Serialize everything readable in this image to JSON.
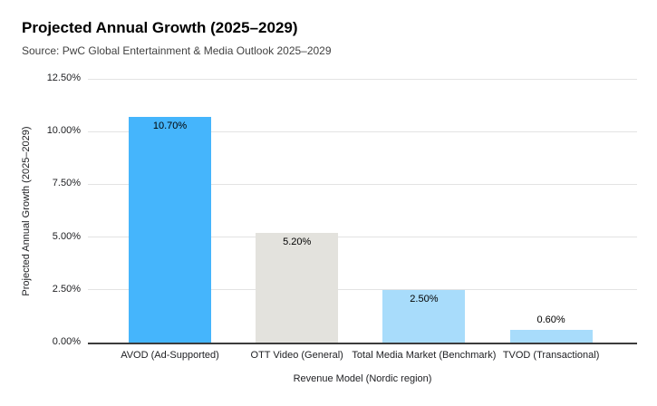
{
  "chart_data": {
    "type": "bar",
    "title": "Projected Annual Growth (2025–2029)",
    "subtitle": "Source: PwC Global Entertainment & Media Outlook 2025–2029",
    "xlabel": "Revenue Model (Nordic region)",
    "ylabel": "Projected Annual Growth (2025–2029)",
    "categories": [
      "AVOD (Ad-Supported)",
      "OTT Video (General)",
      "Total Media Market (Benchmark)",
      "TVOD (Transactional)"
    ],
    "values": [
      10.7,
      5.2,
      2.5,
      0.6
    ],
    "value_labels": [
      "10.70%",
      "5.20%",
      "2.50%",
      "0.60%"
    ],
    "bar_colors": [
      "#45b5fc",
      "#e3e2dd",
      "#a8dcfb",
      "#a8dcfb"
    ],
    "ylim": [
      0,
      12.5
    ],
    "yticks": [
      0,
      2.5,
      5,
      7.5,
      10,
      12.5
    ],
    "ytick_labels": [
      "0.00%",
      "2.50%",
      "5.00%",
      "7.50%",
      "10.00%",
      "12.50%"
    ],
    "grid": true,
    "legend": "none"
  },
  "colors": {
    "background": "#ffffff",
    "gridline": "#e3e3e3",
    "axis_line": "#3c3c3c",
    "title_text": "#000000",
    "subtitle_text": "#424242",
    "tick_text": "#202124"
  }
}
